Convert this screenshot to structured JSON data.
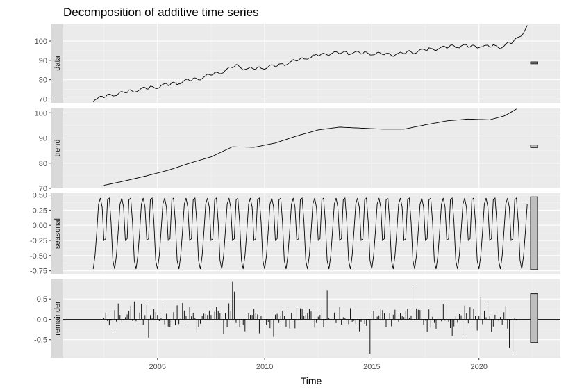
{
  "chart_data": {
    "type": "line",
    "title": "Decomposition of additive time series",
    "xlabel": "Time",
    "xlim": [
      2000.6,
      2023.8
    ],
    "x_ticks": [
      2005,
      2010,
      2015,
      2020
    ],
    "x_tick_labels": [
      "2005",
      "2010",
      "2015",
      "2020"
    ],
    "start": 2002.0,
    "frequency": 12,
    "grid": true,
    "panels": [
      {
        "name": "data",
        "ylim": [
          68,
          109
        ],
        "y_ticks": [
          70,
          80,
          90,
          100
        ],
        "y_tick_labels": [
          "70",
          "80",
          "90",
          "100"
        ],
        "scale_bar": [
          88.2,
          89.2
        ],
        "anchors": [
          [
            2002.0,
            69.8
          ],
          [
            2003.0,
            72.5
          ],
          [
            2004.0,
            74.5
          ],
          [
            2005.0,
            76.5
          ],
          [
            2006.0,
            78.6
          ],
          [
            2007.0,
            81.0
          ],
          [
            2008.0,
            84.0
          ],
          [
            2008.6,
            87.2
          ],
          [
            2009.3,
            85.6
          ],
          [
            2010.0,
            86.2
          ],
          [
            2011.0,
            88.5
          ],
          [
            2012.0,
            91.5
          ],
          [
            2013.0,
            93.8
          ],
          [
            2014.0,
            94.0
          ],
          [
            2015.0,
            93.6
          ],
          [
            2016.0,
            93.0
          ],
          [
            2017.0,
            94.6
          ],
          [
            2018.0,
            96.3
          ],
          [
            2019.0,
            97.4
          ],
          [
            2020.0,
            97.5
          ],
          [
            2021.0,
            97.1
          ],
          [
            2021.6,
            99.5
          ],
          [
            2022.0,
            104.0
          ],
          [
            2022.25,
            107.5
          ]
        ]
      },
      {
        "name": "trend",
        "ylim": [
          70,
          102
        ],
        "y_ticks": [
          70,
          80,
          90,
          100
        ],
        "y_tick_labels": [
          "70",
          "80",
          "90",
          "100"
        ],
        "scale_bar": [
          86.2,
          87.2
        ],
        "start": 2002.5,
        "end": 2021.75,
        "anchors": [
          [
            2002.5,
            71.2
          ],
          [
            2003.5,
            73.0
          ],
          [
            2004.5,
            75.0
          ],
          [
            2005.5,
            77.2
          ],
          [
            2006.5,
            80.0
          ],
          [
            2007.5,
            82.5
          ],
          [
            2008.5,
            86.5
          ],
          [
            2009.5,
            86.3
          ],
          [
            2010.5,
            88.0
          ],
          [
            2011.5,
            90.8
          ],
          [
            2012.5,
            93.2
          ],
          [
            2013.5,
            94.3
          ],
          [
            2014.5,
            93.9
          ],
          [
            2015.5,
            93.5
          ],
          [
            2016.5,
            93.5
          ],
          [
            2017.5,
            95.2
          ],
          [
            2018.5,
            96.8
          ],
          [
            2019.5,
            97.5
          ],
          [
            2020.5,
            97.2
          ],
          [
            2021.2,
            98.8
          ],
          [
            2021.75,
            101.5
          ]
        ]
      },
      {
        "name": "seasonal",
        "ylim": [
          -0.8,
          0.53
        ],
        "y_ticks": [
          -0.75,
          -0.5,
          -0.25,
          0.0,
          0.25,
          0.5
        ],
        "y_tick_labels": [
          "-0.75",
          "-0.50",
          "-0.25",
          "0.00",
          "0.25",
          "0.50"
        ],
        "scale_bar": [
          -0.73,
          0.47
        ],
        "cycle": [
          -0.72,
          -0.5,
          -0.1,
          0.35,
          0.45,
          0.3,
          -0.25,
          -0.22,
          0.42,
          0.45,
          0.05,
          -0.58
        ]
      },
      {
        "name": "remainder",
        "ylim": [
          -0.95,
          1.0
        ],
        "y_ticks": [
          -0.5,
          0.0,
          0.5
        ],
        "y_tick_labels": [
          "-0.5",
          "0.0",
          "0.5"
        ],
        "scale_bar": [
          -0.57,
          0.63
        ],
        "start": 2002.5,
        "end": 2021.75,
        "spikes": [
          [
            2008.5,
            0.92
          ],
          [
            2008.6,
            0.68
          ],
          [
            2012.9,
            0.72
          ],
          [
            2014.9,
            -0.85
          ],
          [
            2016.9,
            0.85
          ],
          [
            2020.1,
            0.55
          ],
          [
            2021.4,
            -0.7
          ],
          [
            2021.6,
            -0.78
          ],
          [
            2006.2,
            0.4
          ],
          [
            2004.6,
            -0.45
          ]
        ]
      }
    ]
  }
}
